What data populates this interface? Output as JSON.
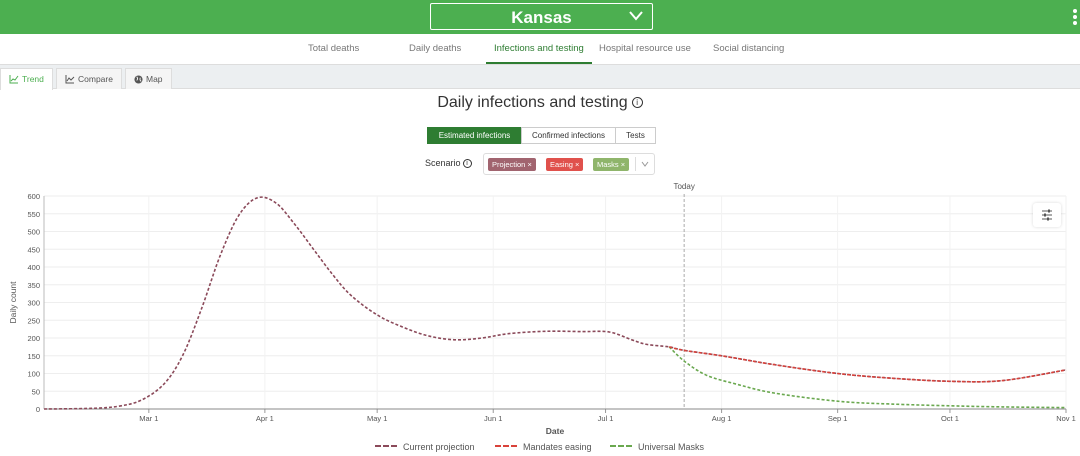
{
  "header": {
    "state": "Kansas",
    "colors": {
      "bar": "#4caf50"
    }
  },
  "nav": {
    "tabs": [
      {
        "label": "Total deaths",
        "active": false
      },
      {
        "label": "Daily deaths",
        "active": false
      },
      {
        "label": "Infections and testing",
        "active": true
      },
      {
        "label": "Hospital resource use",
        "active": false
      },
      {
        "label": "Social distancing",
        "active": false
      }
    ]
  },
  "subtabs": [
    {
      "label": "Trend",
      "icon": "line-chart-icon",
      "active": true
    },
    {
      "label": "Compare",
      "icon": "compare-chart-icon",
      "active": false
    },
    {
      "label": "Map",
      "icon": "globe-icon",
      "active": false
    }
  ],
  "main": {
    "title": "Daily infections and testing",
    "metric_toggle": [
      {
        "label": "Estimated infections",
        "active": true
      },
      {
        "label": "Confirmed infections",
        "active": false
      },
      {
        "label": "Tests",
        "active": false
      }
    ],
    "scenario_label": "Scenario",
    "scenario_chips": [
      {
        "label": "Projection",
        "color": "#a1646f"
      },
      {
        "label": "Easing",
        "color": "#e0514c"
      },
      {
        "label": "Masks",
        "color": "#8fb56b"
      }
    ],
    "legend": [
      {
        "label": "Current projection",
        "color": "#8b4a5a"
      },
      {
        "label": "Mandates easing",
        "color": "#d9423a"
      },
      {
        "label": "Universal Masks",
        "color": "#6aa84f"
      }
    ]
  },
  "chart_data": {
    "type": "line",
    "xlabel": "Date",
    "ylabel": "Daily count",
    "ylim": [
      0,
      600
    ],
    "yticks": [
      0,
      50,
      100,
      150,
      200,
      250,
      300,
      350,
      400,
      450,
      500,
      550,
      600
    ],
    "xlim": [
      "2020-02-02",
      "2020-11-01"
    ],
    "xticks": [
      {
        "date": "2020-03-01",
        "label": "Mar 1"
      },
      {
        "date": "2020-04-01",
        "label": "Apr 1"
      },
      {
        "date": "2020-05-01",
        "label": "May 1"
      },
      {
        "date": "2020-06-01",
        "label": "Jun 1"
      },
      {
        "date": "2020-07-01",
        "label": "Jul 1"
      },
      {
        "date": "2020-08-01",
        "label": "Aug 1"
      },
      {
        "date": "2020-09-01",
        "label": "Sep 1"
      },
      {
        "date": "2020-10-01",
        "label": "Oct 1"
      },
      {
        "date": "2020-11-01",
        "label": "Nov 1"
      }
    ],
    "today": {
      "date": "2020-07-22",
      "label": "Today"
    },
    "grid": true,
    "legend_position": "bottom",
    "series": [
      {
        "name": "Current projection",
        "color": "#8b4a5a",
        "points": [
          [
            "2020-02-02",
            0
          ],
          [
            "2020-02-15",
            2
          ],
          [
            "2020-02-22",
            8
          ],
          [
            "2020-02-28",
            25
          ],
          [
            "2020-03-05",
            70
          ],
          [
            "2020-03-10",
            150
          ],
          [
            "2020-03-15",
            280
          ],
          [
            "2020-03-20",
            430
          ],
          [
            "2020-03-25",
            545
          ],
          [
            "2020-03-30",
            595
          ],
          [
            "2020-04-04",
            580
          ],
          [
            "2020-04-09",
            520
          ],
          [
            "2020-04-14",
            450
          ],
          [
            "2020-04-19",
            380
          ],
          [
            "2020-04-24",
            320
          ],
          [
            "2020-05-01",
            265
          ],
          [
            "2020-05-08",
            230
          ],
          [
            "2020-05-15",
            205
          ],
          [
            "2020-05-22",
            195
          ],
          [
            "2020-05-29",
            200
          ],
          [
            "2020-06-05",
            212
          ],
          [
            "2020-06-15",
            219
          ],
          [
            "2020-06-25",
            218
          ],
          [
            "2020-07-02",
            217
          ],
          [
            "2020-07-08",
            195
          ],
          [
            "2020-07-12",
            182
          ],
          [
            "2020-07-18",
            175
          ],
          [
            "2020-07-22",
            165
          ],
          [
            "2020-08-01",
            150
          ],
          [
            "2020-08-15",
            125
          ],
          [
            "2020-09-01",
            100
          ],
          [
            "2020-09-15",
            87
          ],
          [
            "2020-10-01",
            78
          ],
          [
            "2020-10-15",
            80
          ],
          [
            "2020-11-01",
            110
          ]
        ]
      },
      {
        "name": "Mandates easing",
        "color": "#d9423a",
        "points": [
          [
            "2020-07-18",
            175
          ],
          [
            "2020-07-22",
            165
          ],
          [
            "2020-08-01",
            150
          ],
          [
            "2020-08-15",
            125
          ],
          [
            "2020-09-01",
            100
          ],
          [
            "2020-09-15",
            87
          ],
          [
            "2020-10-01",
            78
          ],
          [
            "2020-10-15",
            80
          ],
          [
            "2020-11-01",
            110
          ]
        ]
      },
      {
        "name": "Universal Masks",
        "color": "#6aa84f",
        "points": [
          [
            "2020-07-18",
            175
          ],
          [
            "2020-07-22",
            135
          ],
          [
            "2020-07-28",
            95
          ],
          [
            "2020-08-05",
            70
          ],
          [
            "2020-08-15",
            45
          ],
          [
            "2020-09-01",
            22
          ],
          [
            "2020-09-15",
            14
          ],
          [
            "2020-10-01",
            9
          ],
          [
            "2020-10-15",
            6
          ],
          [
            "2020-11-01",
            4
          ]
        ]
      }
    ]
  }
}
